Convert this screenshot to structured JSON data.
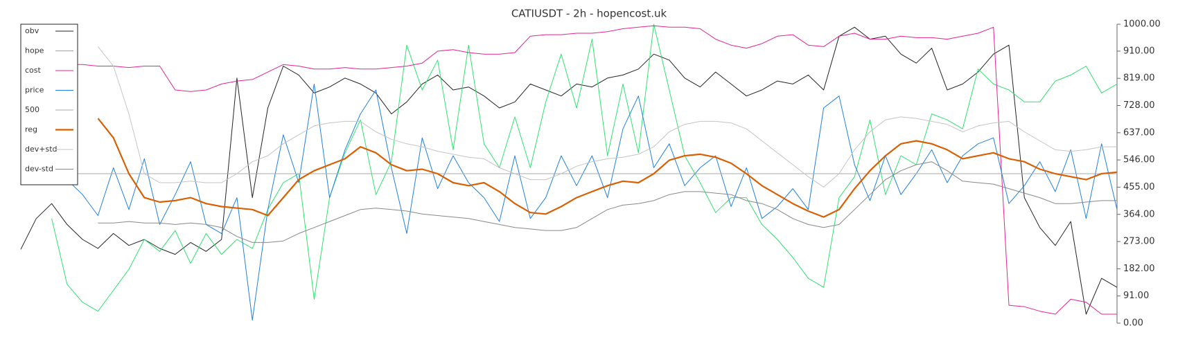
{
  "chart_data": {
    "type": "line",
    "title": "CATIUSDT - 2h - hopencost.uk",
    "ylim": [
      0,
      1000
    ],
    "yticks": [
      {
        "value": 0,
        "label": "0.00"
      },
      {
        "value": 91,
        "label": "91.00"
      },
      {
        "value": 182,
        "label": "182.00"
      },
      {
        "value": 273,
        "label": "273.00"
      },
      {
        "value": 364,
        "label": "364.00"
      },
      {
        "value": 455,
        "label": "455.00"
      },
      {
        "value": 546,
        "label": "546.00"
      },
      {
        "value": 637,
        "label": "637.00"
      },
      {
        "value": 728,
        "label": "728.00"
      },
      {
        "value": 819,
        "label": "819.00"
      },
      {
        "value": 910,
        "label": "910.00"
      },
      {
        "value": 1000,
        "label": "1000.00"
      }
    ],
    "y_axis_side": "right",
    "legend": "upper left",
    "grid": false,
    "series": [
      {
        "name": "obv",
        "color": "#222222",
        "linewidth": 1,
        "values": [
          247,
          350,
          400,
          330,
          280,
          250,
          300,
          260,
          280,
          250,
          230,
          270,
          240,
          280,
          820,
          420,
          720,
          860,
          830,
          770,
          790,
          820,
          800,
          770,
          700,
          740,
          800,
          830,
          780,
          790,
          760,
          720,
          740,
          800,
          780,
          760,
          800,
          790,
          820,
          830,
          850,
          900,
          880,
          820,
          790,
          840,
          800,
          760,
          780,
          810,
          800,
          830,
          780,
          960,
          990,
          950,
          960,
          900,
          870,
          920,
          780,
          800,
          840,
          900,
          930,
          420,
          320,
          260,
          340,
          30,
          150,
          120
        ]
      },
      {
        "name": "hope",
        "color": "#2ee26f",
        "linewidth": 1,
        "values": [
          null,
          null,
          350,
          130,
          70,
          40,
          110,
          180,
          280,
          240,
          310,
          200,
          300,
          230,
          280,
          250,
          380,
          470,
          500,
          80,
          420,
          570,
          680,
          430,
          540,
          930,
          780,
          880,
          580,
          930,
          600,
          520,
          690,
          520,
          740,
          900,
          720,
          950,
          560,
          800,
          570,
          1000,
          780,
          560,
          470,
          370,
          420,
          420,
          330,
          280,
          220,
          150,
          120,
          420,
          490,
          680,
          430,
          560,
          530,
          700,
          680,
          650,
          850,
          800,
          780,
          740,
          740,
          810,
          830,
          860,
          770,
          800
        ]
      },
      {
        "name": "cost",
        "color": "#e6228f",
        "linewidth": 1,
        "values": [
          null,
          null,
          null,
          865,
          865,
          860,
          860,
          855,
          860,
          860,
          780,
          775,
          780,
          800,
          810,
          815,
          840,
          865,
          860,
          850,
          850,
          855,
          850,
          850,
          855,
          860,
          870,
          910,
          915,
          905,
          900,
          900,
          905,
          960,
          965,
          965,
          970,
          970,
          975,
          985,
          990,
          995,
          990,
          990,
          985,
          950,
          930,
          920,
          935,
          960,
          965,
          930,
          925,
          960,
          970,
          950,
          950,
          960,
          955,
          955,
          950,
          960,
          970,
          990,
          60,
          55,
          40,
          30,
          80,
          70,
          30,
          30
        ]
      },
      {
        "name": "price",
        "color": "#1f7fe0",
        "linewidth": 1,
        "values": [
          null,
          null,
          null,
          480,
          430,
          360,
          520,
          380,
          550,
          330,
          430,
          540,
          330,
          300,
          420,
          10,
          380,
          630,
          470,
          800,
          420,
          580,
          700,
          780,
          520,
          300,
          620,
          450,
          560,
          470,
          420,
          340,
          560,
          350,
          420,
          560,
          460,
          560,
          420,
          650,
          760,
          520,
          600,
          460,
          520,
          560,
          390,
          520,
          350,
          390,
          450,
          380,
          720,
          760,
          530,
          410,
          560,
          430,
          500,
          580,
          470,
          560,
          600,
          620,
          400,
          460,
          540,
          440,
          580,
          350,
          600,
          380
        ]
      },
      {
        "name": "500",
        "color": "#aaaaaa",
        "linewidth": 1,
        "values": [
          500,
          500,
          500,
          500,
          500,
          500,
          500,
          500,
          500,
          500,
          500,
          500,
          500,
          500,
          500,
          500,
          500,
          500,
          500,
          500,
          500,
          500,
          500,
          500,
          500,
          500,
          500,
          500,
          500,
          500,
          500,
          500,
          500,
          500,
          500,
          500,
          500,
          500,
          500,
          500,
          500,
          500,
          500,
          500,
          500,
          500,
          500,
          500,
          500,
          500,
          500,
          500,
          500,
          500,
          500,
          500,
          500,
          500,
          500,
          500,
          500,
          500,
          500,
          500,
          500,
          500,
          500,
          500,
          500,
          500,
          500,
          500
        ]
      },
      {
        "name": "reg",
        "color": "#d95f02",
        "linewidth": 2.2,
        "values": [
          null,
          null,
          null,
          null,
          null,
          685,
          620,
          500,
          420,
          405,
          410,
          420,
          400,
          390,
          385,
          380,
          360,
          420,
          480,
          510,
          530,
          550,
          590,
          570,
          530,
          510,
          515,
          500,
          470,
          460,
          470,
          440,
          400,
          370,
          365,
          390,
          420,
          440,
          460,
          475,
          470,
          500,
          545,
          560,
          565,
          555,
          535,
          500,
          460,
          430,
          400,
          375,
          355,
          380,
          450,
          510,
          560,
          600,
          610,
          600,
          580,
          550,
          560,
          570,
          550,
          540,
          515,
          500,
          490,
          480,
          500,
          505
        ]
      },
      {
        "name": "dev+std",
        "color": "#c4c4c4",
        "linewidth": 1,
        "values": [
          null,
          null,
          null,
          null,
          null,
          925,
          860,
          700,
          500,
          470,
          470,
          475,
          470,
          470,
          500,
          540,
          560,
          600,
          630,
          660,
          670,
          675,
          675,
          640,
          615,
          600,
          590,
          575,
          565,
          555,
          550,
          520,
          500,
          480,
          480,
          500,
          525,
          540,
          550,
          555,
          565,
          590,
          640,
          665,
          675,
          675,
          670,
          650,
          610,
          570,
          530,
          490,
          455,
          500,
          580,
          640,
          680,
          690,
          685,
          675,
          665,
          640,
          660,
          670,
          675,
          640,
          610,
          580,
          575,
          580,
          590,
          590
        ]
      },
      {
        "name": "dev-std",
        "color": "#888888",
        "linewidth": 1,
        "values": [
          null,
          null,
          null,
          null,
          null,
          335,
          335,
          340,
          335,
          335,
          330,
          335,
          330,
          320,
          290,
          270,
          270,
          275,
          300,
          320,
          340,
          360,
          380,
          385,
          380,
          375,
          365,
          360,
          355,
          350,
          340,
          330,
          320,
          315,
          310,
          310,
          320,
          350,
          380,
          395,
          400,
          410,
          430,
          440,
          440,
          435,
          430,
          410,
          400,
          380,
          350,
          330,
          320,
          330,
          380,
          430,
          480,
          510,
          530,
          540,
          510,
          475,
          470,
          465,
          450,
          435,
          420,
          400,
          400,
          405,
          410,
          410
        ]
      }
    ]
  }
}
